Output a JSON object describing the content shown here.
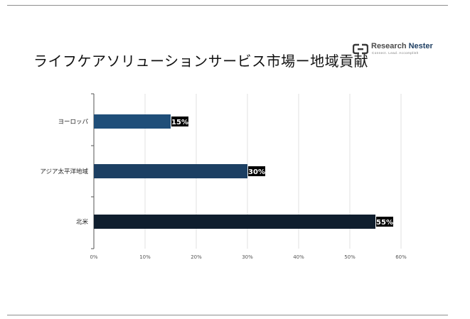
{
  "title": "ライフケアソリューションサービス市場ー地域貢献",
  "logo": {
    "name_part1": "Research ",
    "name_part2": "Nester",
    "tagline": "Connect. Lead. Accomplish"
  },
  "colors": {
    "europe": "#1f4e79",
    "apac": "#1c3f63",
    "north_america": "#0f1e2e",
    "label_bg": "#000000",
    "label_text": "#ffffff"
  },
  "chart_data": {
    "type": "bar",
    "orientation": "horizontal",
    "categories": [
      "ヨーロッパ",
      "アジア太平洋地域",
      "北米"
    ],
    "values": [
      15,
      30,
      55
    ],
    "data_labels": [
      "15%",
      "30%",
      "55%"
    ],
    "xlim": [
      0,
      60
    ],
    "x_ticks": [
      "0%",
      "10%",
      "20%",
      "30%",
      "40%",
      "50%",
      "60%"
    ],
    "grid": "vertical",
    "title": "ライフケアソリューションサービス市場ー地域貢献",
    "xlabel": "",
    "ylabel": ""
  }
}
